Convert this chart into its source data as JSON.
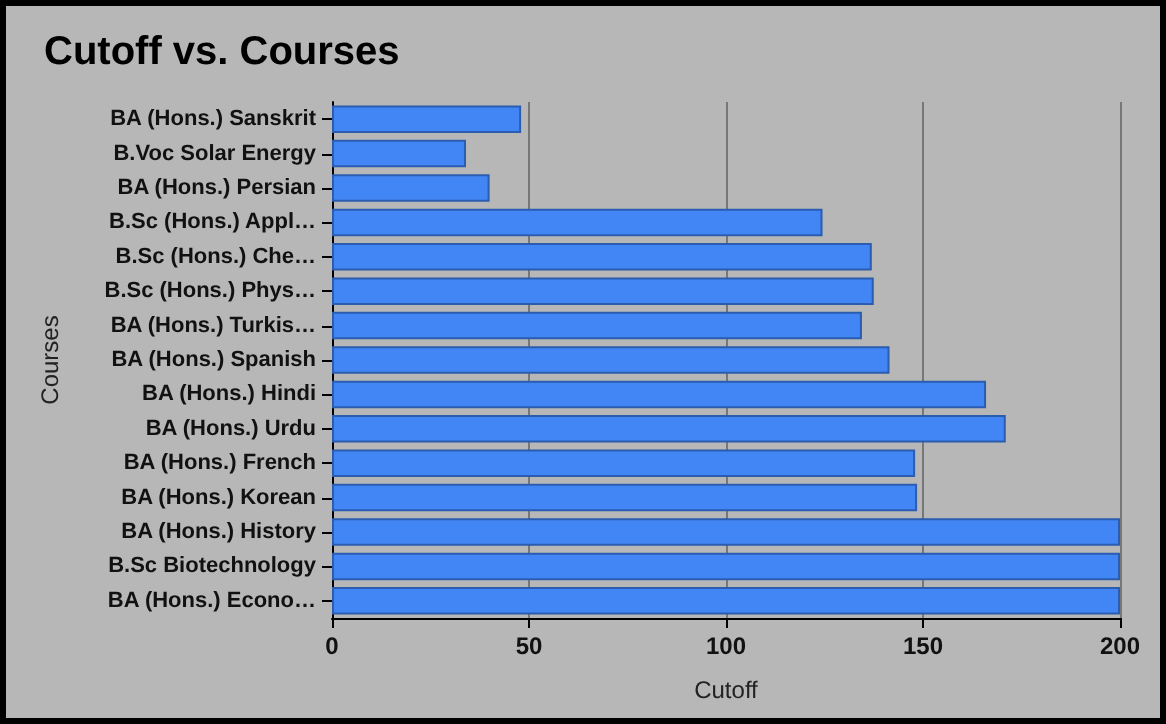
{
  "chart_data": {
    "type": "bar",
    "orientation": "horizontal",
    "title": "Cutoff vs. Courses",
    "xlabel": "Cutoff",
    "ylabel": "Courses",
    "categories": [
      "BA (Hons.) Sanskrit",
      "B.Voc Solar Energy",
      "BA (Hons.) Persian",
      "B.Sc (Hons.) Appl…",
      "B.Sc (Hons.) Che…",
      "B.Sc (Hons.) Phys…",
      "BA (Hons.) Turkis…",
      "BA (Hons.) Spanish",
      "BA (Hons.) Hindi",
      "BA (Hons.) Urdu",
      "BA (Hons.) French",
      "BA (Hons.) Korean",
      "BA (Hons.) History",
      "B.Sc Biotechnology",
      "BA (Hons.) Econo…"
    ],
    "values": [
      48,
      34,
      40,
      124.5,
      137,
      137.5,
      134.5,
      141.5,
      166,
      171,
      148,
      148.5,
      200,
      200,
      200
    ],
    "color": "#4285f4",
    "xlim": [
      0,
      200
    ],
    "xticks": [
      0,
      50,
      100,
      150,
      200
    ],
    "grid": "x"
  }
}
